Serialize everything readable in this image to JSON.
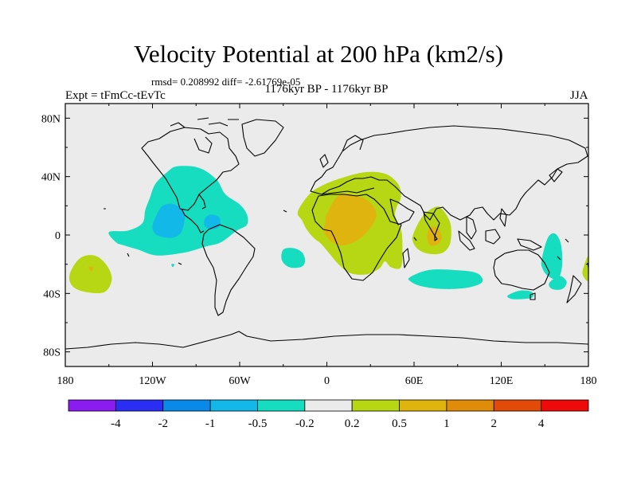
{
  "chart_data": {
    "type": "heatmap",
    "title": "Velocity Potential at 200 hPa (km2/s)",
    "subtitle": "rmsd= 0.208992 diff= -2.61769e-05",
    "left_label": "Expt = tFmCc-tEvTc",
    "center_label": "1176kyr BP - 1176kyr BP",
    "right_label": "JJA",
    "x_axis": {
      "range": [
        -180,
        180
      ],
      "ticks": [
        {
          "value": -180,
          "label": "180"
        },
        {
          "value": -120,
          "label": "120W"
        },
        {
          "value": -60,
          "label": "60W"
        },
        {
          "value": 0,
          "label": "0"
        },
        {
          "value": 60,
          "label": "60E"
        },
        {
          "value": 120,
          "label": "120E"
        },
        {
          "value": 180,
          "label": "180"
        }
      ]
    },
    "y_axis": {
      "range": [
        -90,
        90
      ],
      "ticks": [
        {
          "value": 80,
          "label": "80N"
        },
        {
          "value": 40,
          "label": "40N"
        },
        {
          "value": 0,
          "label": "0"
        },
        {
          "value": -40,
          "label": "40S"
        },
        {
          "value": -80,
          "label": "80S"
        }
      ]
    },
    "colorbar": {
      "labels": [
        "-4",
        "-2",
        "-1",
        "-0.5",
        "-0.2",
        "0.2",
        "0.5",
        "1",
        "2",
        "4"
      ],
      "colors": [
        "#8a1cf0",
        "#2a2ef2",
        "#0a8ae8",
        "#12b8e8",
        "#16dcc0",
        "#ebebeb",
        "#b7d613",
        "#e0b40e",
        "#e08c0b",
        "#e24a08",
        "#ee0a0a"
      ]
    },
    "regions": [
      {
        "name": "central-pacific-atlantic-negative",
        "level": "-0.5 to -0.2",
        "color": "#16dcc0",
        "points": [
          [
            -145,
            -5
          ],
          [
            -150,
            2
          ],
          [
            -137,
            3
          ],
          [
            -127,
            8
          ],
          [
            -125,
            17
          ],
          [
            -122,
            25
          ],
          [
            -118,
            35
          ],
          [
            -110,
            43
          ],
          [
            -103,
            47
          ],
          [
            -88,
            46
          ],
          [
            -76,
            38
          ],
          [
            -70,
            28
          ],
          [
            -60,
            21
          ],
          [
            -55,
            14
          ],
          [
            -55,
            7
          ],
          [
            -62,
            3
          ],
          [
            -73,
            -5
          ],
          [
            -84,
            -8
          ],
          [
            -98,
            -12
          ],
          [
            -117,
            -14
          ],
          [
            -130,
            -10
          ],
          [
            -140,
            -7
          ]
        ]
      },
      {
        "name": "eastern-pacific-core",
        "level": "-1 to -0.5",
        "color": "#12b8e8",
        "points": [
          [
            -118,
            12
          ],
          [
            -113,
            20
          ],
          [
            -105,
            21
          ],
          [
            -98,
            15
          ],
          [
            -99,
            5
          ],
          [
            -102,
            0
          ],
          [
            -108,
            -2
          ],
          [
            -117,
            0
          ],
          [
            -120,
            5
          ]
        ]
      },
      {
        "name": "caribbean-core",
        "level": "-1 to -0.5",
        "color": "#12b8e8",
        "points": [
          [
            -84,
            11
          ],
          [
            -80,
            14
          ],
          [
            -74,
            12
          ],
          [
            -74,
            6
          ],
          [
            -79,
            4
          ],
          [
            -84,
            6
          ]
        ]
      },
      {
        "name": "south-atlantic-negative",
        "level": "-0.5 to -0.2",
        "color": "#16dcc0",
        "points": [
          [
            -30,
            -10
          ],
          [
            -23,
            -9
          ],
          [
            -17,
            -12
          ],
          [
            -15,
            -18
          ],
          [
            -18,
            -22
          ],
          [
            -26,
            -22
          ],
          [
            -31,
            -17
          ]
        ]
      },
      {
        "name": "southern-indian-negative",
        "level": "-0.5 to -0.2",
        "color": "#16dcc0",
        "points": [
          [
            57,
            -29
          ],
          [
            70,
            -24
          ],
          [
            88,
            -24
          ],
          [
            103,
            -26
          ],
          [
            107,
            -32
          ],
          [
            97,
            -36
          ],
          [
            80,
            -37
          ],
          [
            65,
            -35
          ],
          [
            58,
            -32
          ]
        ]
      },
      {
        "name": "coral-sea-negative",
        "level": "-0.5 to -0.2",
        "color": "#16dcc0",
        "points": [
          [
            148,
            -16
          ],
          [
            152,
            -2
          ],
          [
            157,
            1
          ],
          [
            161,
            -6
          ],
          [
            162,
            -20
          ],
          [
            159,
            -30
          ],
          [
            152,
            -28
          ],
          [
            148,
            -22
          ]
        ]
      },
      {
        "name": "tasman-negative",
        "level": "-0.5 to -0.2",
        "color": "#16dcc0",
        "points": [
          [
            153,
            -33
          ],
          [
            160,
            -28
          ],
          [
            165,
            -32
          ],
          [
            162,
            -37
          ],
          [
            155,
            -37
          ]
        ]
      },
      {
        "name": "south-of-australia-negative",
        "level": "-0.5 to -0.2",
        "color": "#16dcc0",
        "points": [
          [
            125,
            -41
          ],
          [
            133,
            -38
          ],
          [
            141,
            -39
          ],
          [
            141,
            -43
          ],
          [
            130,
            -44
          ],
          [
            125,
            -43
          ]
        ]
      },
      {
        "name": "tiny-east-pacific-dot",
        "level": "-0.5 to -0.2",
        "color": "#16dcc0",
        "points": [
          [
            -107,
            -20
          ],
          [
            -105,
            -20
          ],
          [
            -106,
            -22
          ]
        ]
      },
      {
        "name": "africa-positive",
        "level": "0.2 to 0.5",
        "color": "#b7d613",
        "points": [
          [
            -20,
            16
          ],
          [
            -12,
            28
          ],
          [
            -3,
            34
          ],
          [
            10,
            39
          ],
          [
            26,
            43
          ],
          [
            40,
            42
          ],
          [
            49,
            35
          ],
          [
            51,
            26
          ],
          [
            48,
            19
          ],
          [
            47,
            13
          ],
          [
            51,
            4
          ],
          [
            52,
            -7
          ],
          [
            51,
            -22
          ],
          [
            44,
            -22
          ],
          [
            40,
            -18
          ],
          [
            36,
            -23
          ],
          [
            27,
            -27
          ],
          [
            16,
            -26
          ],
          [
            8,
            -20
          ],
          [
            2,
            -13
          ],
          [
            -4,
            -6
          ],
          [
            -9,
            -2
          ],
          [
            -14,
            4
          ],
          [
            -17,
            10
          ]
        ]
      },
      {
        "name": "africa-core",
        "level": "0.5 to 1",
        "color": "#e0b40e",
        "points": [
          [
            0,
            14
          ],
          [
            8,
            27
          ],
          [
            20,
            27
          ],
          [
            30,
            22
          ],
          [
            34,
            14
          ],
          [
            30,
            5
          ],
          [
            22,
            -3
          ],
          [
            12,
            -7
          ],
          [
            4,
            -5
          ],
          [
            -2,
            2
          ],
          [
            -1,
            9
          ]
        ]
      },
      {
        "name": "indian-positive",
        "level": "0.2 to 0.5",
        "color": "#b7d613",
        "points": [
          [
            60,
            2
          ],
          [
            66,
            13
          ],
          [
            74,
            19
          ],
          [
            79,
            18
          ],
          [
            85,
            8
          ],
          [
            85,
            -5
          ],
          [
            80,
            -12
          ],
          [
            71,
            -13
          ],
          [
            63,
            -10
          ],
          [
            59,
            -4
          ]
        ]
      },
      {
        "name": "indian-core",
        "level": "0.5 to 1",
        "color": "#e0b40e",
        "points": [
          [
            69,
            -1
          ],
          [
            71,
            5
          ],
          [
            76,
            5
          ],
          [
            79,
            -1
          ],
          [
            77,
            -6
          ],
          [
            71,
            -7
          ]
        ]
      },
      {
        "name": "south-pacific-positive",
        "level": "0.2 to 0.5",
        "color": "#b7d613",
        "points": [
          [
            -177,
            -27
          ],
          [
            -170,
            -16
          ],
          [
            -160,
            -14
          ],
          [
            -152,
            -20
          ],
          [
            -148,
            -30
          ],
          [
            -153,
            -39
          ],
          [
            -166,
            -39
          ],
          [
            -175,
            -35
          ]
        ]
      },
      {
        "name": "south-pacific-core",
        "level": "0.5 to 1",
        "color": "#e0b40e",
        "points": [
          [
            -164,
            -22
          ],
          [
            -161,
            -22
          ],
          [
            -162,
            -25
          ]
        ]
      },
      {
        "name": "dateline-edge-positive",
        "level": "0.2 to 0.5",
        "color": "#b7d613",
        "points": [
          [
            180,
            -15
          ],
          [
            177,
            -21
          ],
          [
            176,
            -27
          ],
          [
            180,
            -31
          ]
        ]
      }
    ]
  }
}
